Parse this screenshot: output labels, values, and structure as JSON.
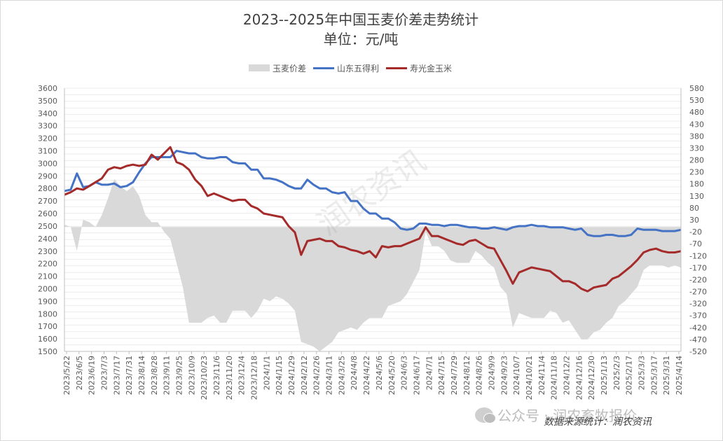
{
  "chart_data": {
    "type": "line",
    "title": "2023--2025年中国玉麦价差走势统计",
    "subtitle": "单位：元/吨",
    "legend": [
      "玉麦价差",
      "山东五得利",
      "寿光金玉米"
    ],
    "legend_position": "top",
    "grid": true,
    "y_left_ticks": [
      "3600",
      "3500",
      "3400",
      "3300",
      "3200",
      "3100",
      "3000",
      "2900",
      "2800",
      "2700",
      "2600",
      "2500",
      "2400",
      "2300",
      "2200",
      "2100",
      "2000",
      "1900",
      "1800",
      "1700",
      "1600",
      "1500"
    ],
    "y_left_range": [
      1500,
      3600
    ],
    "y_right_ticks": [
      "580",
      "530",
      "480",
      "430",
      "380",
      "330",
      "280",
      "230",
      "180",
      "130",
      "80",
      "30",
      "-20",
      "-70",
      "-120",
      "-170",
      "-220",
      "-270",
      "-320",
      "-370",
      "-420",
      "-470",
      "-520"
    ],
    "y_right_range": [
      -520,
      580
    ],
    "x_tick_labels": [
      "2023/5/22",
      "2023/6/5",
      "2023/6/19",
      "2023/7/3",
      "2023/7/17",
      "2023/7/31",
      "2023/8/14",
      "2023/8/28",
      "2023/9/11",
      "2023/9/25",
      "2023/10/9",
      "2023/10/23",
      "2023/11/6",
      "2023/11/20",
      "2023/12/4",
      "2023/12/18",
      "2024/1/1",
      "2024/1/15",
      "2024/1/29",
      "2024/2/12",
      "2024/2/26",
      "2024/3/11",
      "2024/3/25",
      "2024/4/8",
      "2024/4/22",
      "2024/5/6",
      "2024/5/20",
      "2024/6/3",
      "2024/6/17",
      "2024/7/1",
      "2024/7/15",
      "2024/7/29",
      "2024/8/12",
      "2024/8/26",
      "2024/9/9",
      "2024/9/23",
      "2024/10/7",
      "2024/10/21",
      "2024/11/4",
      "2024/11/18",
      "2024/12/2",
      "2024/12/16",
      "2024/12/30",
      "2025/1/13",
      "2025/2/3",
      "2025/2/17",
      "2025/3/3",
      "2025/3/17",
      "2025/3/31",
      "2025/4/14"
    ],
    "series": [
      {
        "name": "山东五得利",
        "axis": "left",
        "color": "#4472c4",
        "values": [
          2780,
          2790,
          2920,
          2810,
          2820,
          2850,
          2830,
          2830,
          2840,
          2810,
          2820,
          2850,
          2930,
          3000,
          3050,
          3050,
          3050,
          3050,
          3100,
          3090,
          3080,
          3080,
          3050,
          3040,
          3040,
          3050,
          3050,
          3010,
          3000,
          3000,
          2950,
          2950,
          2880,
          2880,
          2870,
          2850,
          2820,
          2800,
          2800,
          2870,
          2830,
          2800,
          2800,
          2770,
          2760,
          2770,
          2700,
          2700,
          2640,
          2600,
          2600,
          2560,
          2560,
          2530,
          2480,
          2470,
          2480,
          2520,
          2520,
          2510,
          2510,
          2500,
          2510,
          2510,
          2500,
          2490,
          2490,
          2480,
          2480,
          2490,
          2480,
          2470,
          2490,
          2500,
          2500,
          2510,
          2500,
          2500,
          2490,
          2490,
          2490,
          2480,
          2470,
          2480,
          2430,
          2420,
          2420,
          2430,
          2430,
          2420,
          2420,
          2430,
          2480,
          2470,
          2470,
          2470,
          2460,
          2460,
          2460,
          2470
        ]
      },
      {
        "name": "寿光金玉米",
        "axis": "left",
        "color": "#a52a2a",
        "values": [
          2750,
          2770,
          2800,
          2790,
          2820,
          2850,
          2880,
          2950,
          2970,
          2960,
          2980,
          2990,
          2980,
          2990,
          3070,
          3030,
          3080,
          3130,
          3010,
          2990,
          2950,
          2870,
          2820,
          2740,
          2760,
          2740,
          2720,
          2700,
          2710,
          2710,
          2660,
          2640,
          2600,
          2590,
          2580,
          2570,
          2500,
          2450,
          2270,
          2380,
          2390,
          2400,
          2380,
          2380,
          2340,
          2330,
          2310,
          2300,
          2280,
          2300,
          2250,
          2340,
          2330,
          2340,
          2340,
          2360,
          2380,
          2400,
          2490,
          2420,
          2420,
          2400,
          2380,
          2360,
          2350,
          2380,
          2390,
          2360,
          2330,
          2320,
          2230,
          2140,
          2040,
          2130,
          2150,
          2170,
          2160,
          2150,
          2140,
          2100,
          2060,
          2060,
          2040,
          2000,
          1980,
          2010,
          2020,
          2030,
          2080,
          2100,
          2140,
          2180,
          2230,
          2290,
          2310,
          2320,
          2300,
          2290,
          2290,
          2300
        ]
      },
      {
        "name": "玉麦价差",
        "axis": "right",
        "type": "area",
        "color": "#d9d9d9",
        "values": [
          10,
          0,
          -100,
          30,
          20,
          0,
          50,
          120,
          200,
          170,
          150,
          170,
          130,
          50,
          20,
          20,
          -20,
          -50,
          -150,
          -250,
          -400,
          -400,
          -400,
          -380,
          -370,
          -400,
          -400,
          -350,
          -350,
          -350,
          -380,
          -350,
          -300,
          -310,
          -290,
          -300,
          -320,
          -350,
          -480,
          -490,
          -500,
          -520,
          -500,
          -480,
          -440,
          -430,
          -420,
          -430,
          -400,
          -380,
          -380,
          -380,
          -330,
          -320,
          -310,
          -280,
          -230,
          -180,
          -20,
          -80,
          -80,
          -100,
          -140,
          -150,
          -150,
          -150,
          -100,
          -120,
          -150,
          -170,
          -250,
          -280,
          -420,
          -360,
          -370,
          -380,
          -380,
          -380,
          -350,
          -360,
          -400,
          -390,
          -430,
          -470,
          -470,
          -440,
          -430,
          -400,
          -380,
          -330,
          -310,
          -280,
          -250,
          -180,
          -160,
          -160,
          -160,
          -170,
          -160,
          -170
        ]
      }
    ]
  },
  "watermark_text": "润农资讯",
  "wechat_text": "公众号 · 润农畜牧报价",
  "source_text": "数据来源统计：润农资讯"
}
